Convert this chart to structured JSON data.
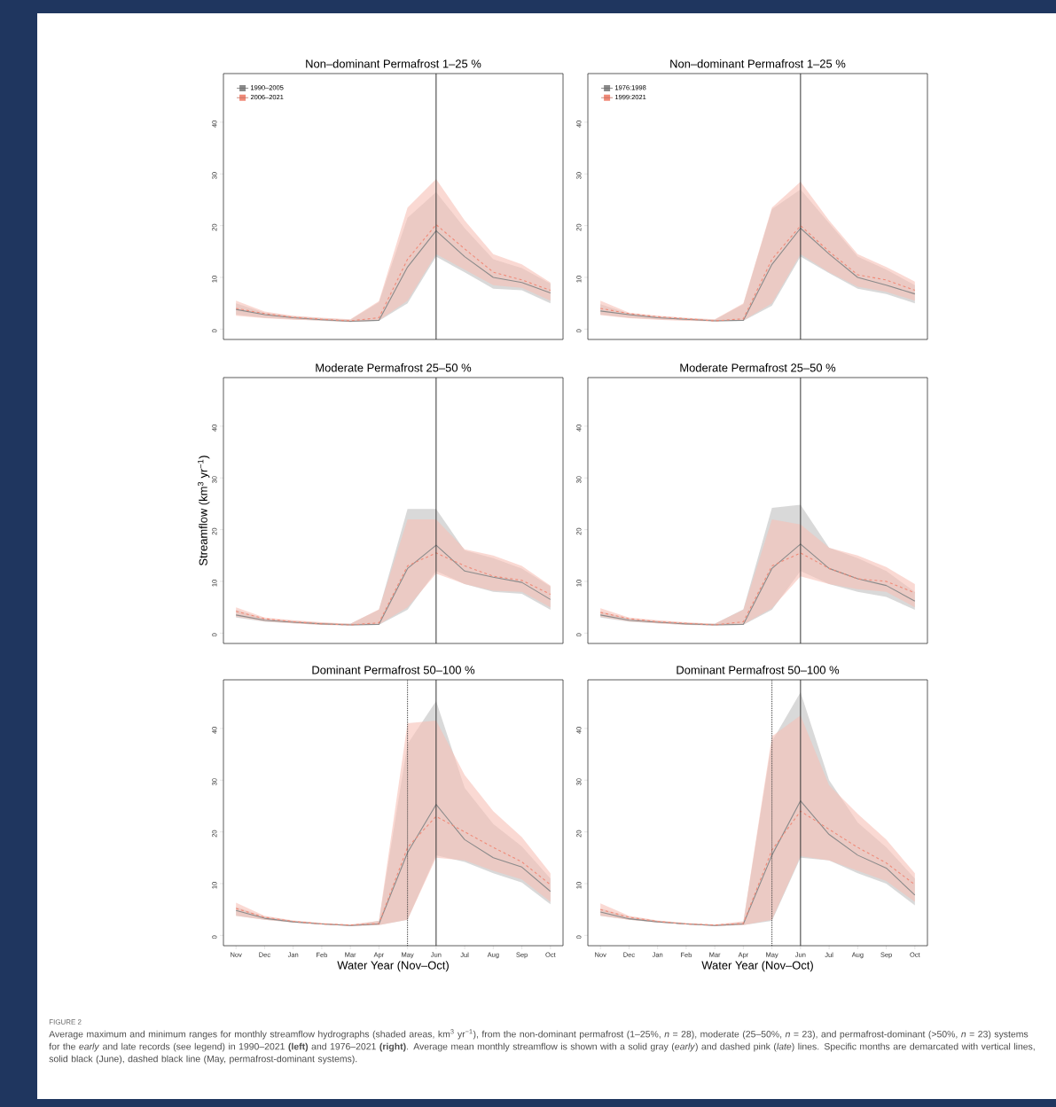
{
  "chart_data": [
    {
      "type": "line",
      "title": "Non–dominant Permafrost 1–25 %",
      "categories": [
        "Nov",
        "Dec",
        "Jan",
        "Feb",
        "Mar",
        "Apr",
        "May",
        "Jun",
        "Jul",
        "Aug",
        "Sep",
        "Oct"
      ],
      "ylim": [
        -2,
        49.4
      ],
      "yticks": [
        0,
        10,
        20,
        30,
        40
      ],
      "tick_labels": "y",
      "legend": "top left",
      "ref_lines": [
        {
          "axis": "x",
          "value": "Jun",
          "color": "#333333",
          "line_style": "solid"
        }
      ],
      "series": [
        {
          "name": "1990–2005",
          "color": "#8a8a8a",
          "line_style": "solid",
          "values": [
            3.8,
            2.8,
            2.2,
            1.8,
            1.5,
            1.7,
            12,
            19,
            14,
            10,
            9,
            7
          ],
          "lower": [
            2.8,
            2.2,
            1.9,
            1.6,
            1.4,
            1.6,
            5,
            14,
            11,
            7.8,
            7.5,
            5
          ],
          "upper": [
            5,
            3.2,
            2.5,
            2.1,
            1.8,
            5.2,
            21.5,
            26.5,
            19.5,
            13.5,
            11.8,
            8.8
          ]
        },
        {
          "name": "2006–2021",
          "color": "#f08a78",
          "line_style": "dashed",
          "values": [
            4,
            3,
            2.3,
            1.9,
            1.6,
            2.2,
            13.5,
            20.2,
            15.5,
            11,
            9.5,
            7.5
          ],
          "lower": [
            2.6,
            2.1,
            1.8,
            1.7,
            1.4,
            1.7,
            5.5,
            14.5,
            11.5,
            8.5,
            8,
            5.5
          ],
          "upper": [
            5.5,
            3.4,
            2.6,
            2.2,
            1.9,
            5.4,
            23.5,
            29,
            21,
            14.5,
            12.5,
            9
          ]
        }
      ]
    },
    {
      "type": "line",
      "title": "Non–dominant Permafrost 1–25 %",
      "categories": [
        "Nov",
        "Dec",
        "Jan",
        "Feb",
        "Mar",
        "Apr",
        "May",
        "Jun",
        "Jul",
        "Aug",
        "Sep",
        "Oct"
      ],
      "ylim": [
        -2,
        49.4
      ],
      "yticks": [
        0,
        10,
        20,
        30,
        40
      ],
      "tick_labels": "y",
      "legend": "top left",
      "ref_lines": [
        {
          "axis": "x",
          "value": "Jun",
          "color": "#333333",
          "line_style": "solid"
        }
      ],
      "series": [
        {
          "name": "1976:1998",
          "color": "#8a8a8a",
          "line_style": "solid",
          "values": [
            3.5,
            2.8,
            2.2,
            1.9,
            1.6,
            1.7,
            12.5,
            19.5,
            14.5,
            10,
            8.5,
            6.8
          ],
          "lower": [
            2.8,
            2.2,
            1.9,
            1.7,
            1.5,
            1.6,
            4.5,
            14,
            10.8,
            7.8,
            6.8,
            5
          ],
          "upper": [
            4.8,
            3,
            2.5,
            2.1,
            1.8,
            4.8,
            23.2,
            27,
            20.5,
            14,
            11.5,
            8.5
          ]
        },
        {
          "name": "1999:2021",
          "color": "#f08a78",
          "line_style": "dashed",
          "values": [
            4,
            3,
            2.4,
            2,
            1.6,
            2,
            13.5,
            20,
            15,
            10.5,
            9.5,
            7.5
          ],
          "lower": [
            2.7,
            2.1,
            1.8,
            1.6,
            1.5,
            1.7,
            5,
            14.5,
            11,
            8.2,
            7.2,
            5.5
          ],
          "upper": [
            5.5,
            3.2,
            2.6,
            2.2,
            1.9,
            5,
            23.5,
            28.5,
            21,
            14.5,
            12,
            9.2
          ]
        }
      ]
    },
    {
      "type": "line",
      "title": "Moderate Permafrost 25–50 %",
      "ylabel": "Streamflow (km$^{3}$ yr$^{−1}$)",
      "categories": [
        "Nov",
        "Dec",
        "Jan",
        "Feb",
        "Mar",
        "Apr",
        "May",
        "Jun",
        "Jul",
        "Aug",
        "Sep",
        "Oct"
      ],
      "ylim": [
        -2,
        49.4
      ],
      "yticks": [
        0,
        10,
        20,
        30,
        40
      ],
      "tick_labels": "y",
      "ref_lines": [
        {
          "axis": "x",
          "value": "Jun",
          "color": "#333333",
          "line_style": "solid"
        }
      ],
      "series": [
        {
          "color": "#8a8a8a",
          "line_style": "solid",
          "values": [
            3.5,
            2.5,
            2.1,
            1.8,
            1.6,
            1.7,
            12.5,
            17,
            12,
            10.8,
            9.8,
            6.5
          ],
          "lower": [
            3,
            2.2,
            1.9,
            1.6,
            1.5,
            1.6,
            4.5,
            12,
            9.5,
            8,
            7.6,
            4.5
          ],
          "upper": [
            4.5,
            2.8,
            2.4,
            2,
            1.8,
            4.5,
            24,
            24,
            16,
            14.5,
            12.5,
            9
          ]
        },
        {
          "color": "#f08a78",
          "line_style": "dashed",
          "values": [
            4.2,
            2.8,
            2.2,
            1.8,
            1.6,
            2,
            13,
            15.5,
            13,
            11,
            10.2,
            7.5
          ],
          "lower": [
            3.2,
            2.3,
            1.9,
            1.6,
            1.5,
            1.7,
            5,
            11.5,
            9.5,
            8.2,
            8,
            5
          ],
          "upper": [
            5,
            3,
            2.5,
            2.1,
            1.8,
            4.6,
            22,
            22,
            16.2,
            15,
            13,
            9.2
          ]
        }
      ]
    },
    {
      "type": "line",
      "title": "Moderate Permafrost 25–50 %",
      "categories": [
        "Nov",
        "Dec",
        "Jan",
        "Feb",
        "Mar",
        "Apr",
        "May",
        "Jun",
        "Jul",
        "Aug",
        "Sep",
        "Oct"
      ],
      "ylim": [
        -2,
        49.4
      ],
      "yticks": [
        0,
        10,
        20,
        30,
        40
      ],
      "tick_labels": "y",
      "ref_lines": [
        {
          "axis": "x",
          "value": "Jun",
          "color": "#333333",
          "line_style": "solid"
        }
      ],
      "series": [
        {
          "color": "#8a8a8a",
          "line_style": "solid",
          "values": [
            3.5,
            2.5,
            2.1,
            1.8,
            1.6,
            1.7,
            12.5,
            17.2,
            12.5,
            10.5,
            9.2,
            6.2
          ],
          "lower": [
            3,
            2.2,
            1.9,
            1.6,
            1.5,
            1.6,
            4.5,
            12,
            9.5,
            8,
            7,
            4.5
          ],
          "upper": [
            4.2,
            2.8,
            2.4,
            2,
            1.8,
            4.6,
            24.2,
            24.8,
            16.5,
            14.5,
            12,
            8
          ]
        },
        {
          "color": "#f08a78",
          "line_style": "dashed",
          "values": [
            4,
            2.8,
            2.2,
            1.9,
            1.6,
            2.2,
            13,
            15.5,
            12.5,
            10.5,
            10,
            7.8
          ],
          "lower": [
            3.2,
            2.3,
            1.9,
            1.6,
            1.5,
            1.7,
            4.8,
            11,
            9.5,
            8.5,
            8,
            5
          ],
          "upper": [
            4.8,
            3,
            2.5,
            2.1,
            1.8,
            4.5,
            22,
            21,
            16.5,
            15,
            12.8,
            9.5
          ]
        }
      ]
    },
    {
      "type": "line",
      "title": "Dominant Permafrost 50–100 %",
      "xlabel": "Water Year (Nov–Oct)",
      "categories": [
        "Nov",
        "Dec",
        "Jan",
        "Feb",
        "Mar",
        "Apr",
        "May",
        "Jun",
        "Jul",
        "Aug",
        "Sep",
        "Oct"
      ],
      "ylim": [
        -2,
        49.4
      ],
      "yticks": [
        0,
        10,
        20,
        30,
        40
      ],
      "ref_lines": [
        {
          "axis": "x",
          "value": "May",
          "color": "#333333",
          "line_style": "dotted"
        },
        {
          "axis": "x",
          "value": "Jun",
          "color": "#333333",
          "line_style": "solid"
        }
      ],
      "series": [
        {
          "color": "#8a8a8a",
          "line_style": "solid",
          "values": [
            4.8,
            3.3,
            2.6,
            2.2,
            1.9,
            2.2,
            16,
            25.3,
            18.5,
            15,
            13.2,
            8.5
          ],
          "lower": [
            3.8,
            3,
            2.5,
            2.1,
            1.8,
            2,
            3,
            15.5,
            14.2,
            12,
            10.2,
            6
          ],
          "upper": [
            5.5,
            3.6,
            2.8,
            2.3,
            2,
            2.8,
            37,
            45.3,
            28.5,
            21.5,
            17.2,
            11
          ]
        },
        {
          "color": "#f08a78",
          "line_style": "dashed",
          "values": [
            5.2,
            3.5,
            2.7,
            2.2,
            2,
            2.3,
            17,
            23,
            20,
            17,
            14.2,
            9.8
          ],
          "lower": [
            3.8,
            3,
            2.5,
            2.1,
            1.8,
            2,
            3,
            15,
            14.5,
            12.5,
            10.8,
            6.5
          ],
          "upper": [
            6.3,
            3.8,
            2.9,
            2.4,
            2.1,
            2.8,
            41,
            41.5,
            31,
            24,
            19,
            12
          ]
        }
      ]
    },
    {
      "type": "line",
      "title": "Dominant Permafrost 50–100 %",
      "xlabel": "Water Year (Nov–Oct)",
      "categories": [
        "Nov",
        "Dec",
        "Jan",
        "Feb",
        "Mar",
        "Apr",
        "May",
        "Jun",
        "Jul",
        "Aug",
        "Sep",
        "Oct"
      ],
      "ylim": [
        -2,
        49.4
      ],
      "yticks": [
        0,
        10,
        20,
        30,
        40
      ],
      "ref_lines": [
        {
          "axis": "x",
          "value": "May",
          "color": "#333333",
          "line_style": "dotted"
        },
        {
          "axis": "x",
          "value": "Jun",
          "color": "#333333",
          "line_style": "solid"
        }
      ],
      "series": [
        {
          "color": "#8a8a8a",
          "line_style": "solid",
          "values": [
            4.5,
            3.2,
            2.6,
            2.2,
            1.9,
            2.2,
            15.5,
            26,
            19.5,
            15.5,
            13,
            7.8
          ],
          "lower": [
            3.8,
            3,
            2.5,
            2.1,
            1.8,
            2,
            2.8,
            15,
            14.5,
            12,
            10,
            5.8
          ],
          "upper": [
            5.2,
            3.6,
            2.8,
            2.3,
            2,
            2.6,
            37.5,
            47,
            30,
            21.8,
            17,
            11
          ]
        },
        {
          "color": "#f08a78",
          "line_style": "dashed",
          "values": [
            5,
            3.5,
            2.7,
            2.2,
            2,
            2.3,
            16.5,
            24,
            20.5,
            17,
            14,
            9.8
          ],
          "lower": [
            3.8,
            3,
            2.5,
            2.1,
            1.8,
            2,
            3,
            15.3,
            14.5,
            12.5,
            10.5,
            6.5
          ],
          "upper": [
            6.2,
            3.8,
            2.9,
            2.4,
            2.1,
            2.7,
            38.5,
            42.5,
            29,
            23.5,
            18.5,
            12
          ]
        }
      ],
      "annotations": [
        "FIGURE 2",
        "Average maximum and minimum ranges for monthly streamflow hydrographs (shaded areas, km$^{3}$ yr$^{−1}$), from the non-dominant permafrost (1–25%, *n* = 28), moderate (25–50%, *n* = 23), and permafrost-dominant (>50%, *n* = 23) systems for the *early* and late records (see legend) in 1990–2021 **(left)** and 1976–2021 **(right)**. Average mean monthly streamflow is shown with a solid gray (*early*) and dashed pink (*late*) lines. Specific months are demarcated with vertical lines, solid black (June), dashed black line (May, permafrost-dominant systems)."
      ]
    }
  ]
}
